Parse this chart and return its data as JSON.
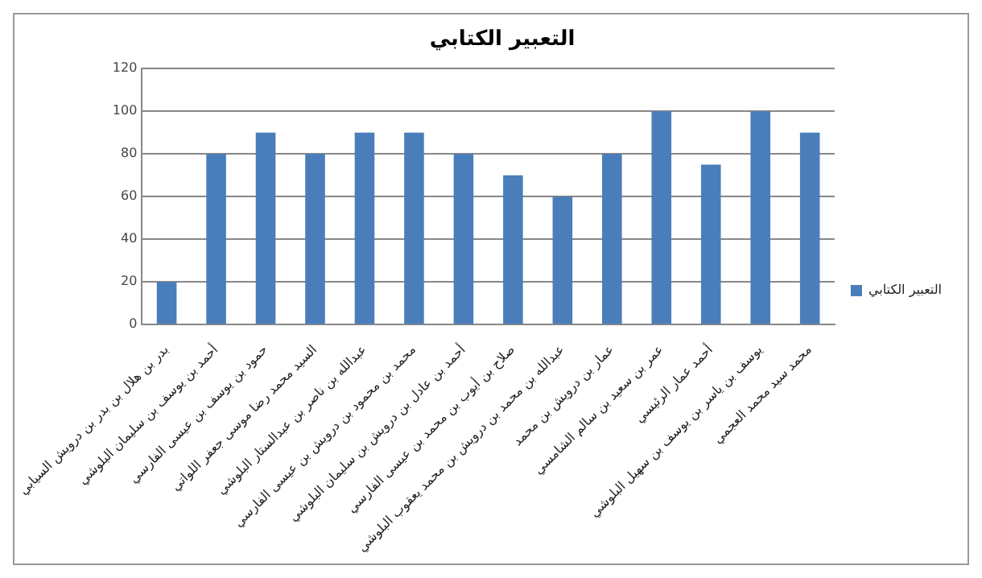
{
  "chart_data": {
    "type": "bar",
    "title": "التعبير الكتابي",
    "categories": [
      "بدر بن هلال بن بدر بن درويش السيابي",
      "أحمد بن يوسف بن سليمان البلوشي",
      "حمود بن يوسف بن عيسى الفارسي",
      "السيد محمد رضا موسى جعفر اللواتي",
      "عبدالله بن ناصر بن عبدالستار البلوشي",
      "محمد بن محمود بن درويش بن عيسى الفارسي",
      "أحمد بن عادل بن درويش بن سليمان البلوشي",
      "صلاح بن أيوب بن محمد بن عيسى الفارسي",
      "عبدالله بن محمد بن درويش بن محمد يعقوب البلوشي",
      "عمار بن درويش بن محمد",
      "عمر بن سعيد بن سالم الشامسي",
      "أحمد عمار الرئيسي",
      "يوسف بن ياسر بن يوسف بن سهيل البلوشي",
      "محمد سيد محمد العجمي"
    ],
    "series": [
      {
        "name": "التعبير الكتابي",
        "color": "#4a7ebb",
        "values": [
          20,
          80,
          90,
          80,
          90,
          90,
          80,
          70,
          60,
          80,
          100,
          75,
          100,
          90
        ]
      }
    ],
    "ylim": [
      0,
      120
    ],
    "yticks": [
      0,
      20,
      40,
      60,
      80,
      100,
      120
    ],
    "grid": "y",
    "legend": "right"
  }
}
